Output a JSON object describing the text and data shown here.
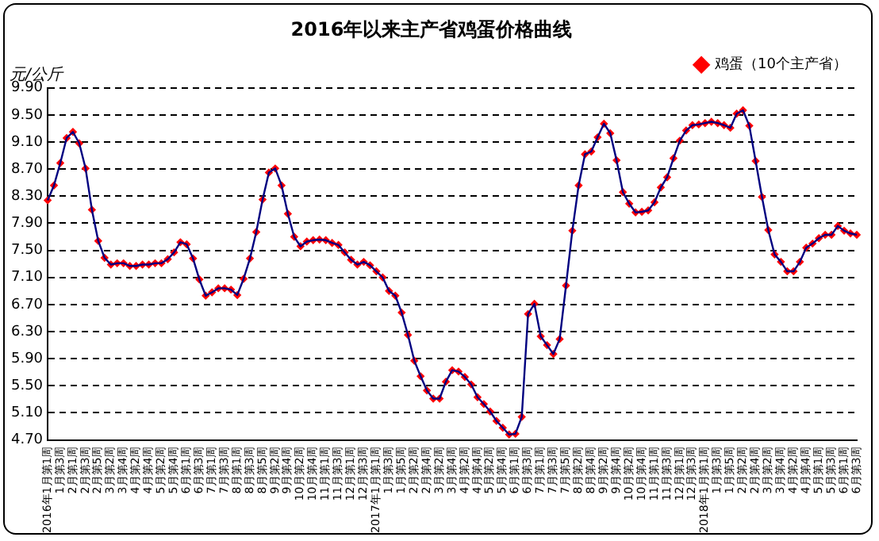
{
  "chart_data": {
    "type": "line",
    "title": "2016年以来主产省鸡蛋价格曲线",
    "ylabel": "元/公斤",
    "categories": [
      "2016年1月第1周",
      null,
      "1月第3周",
      null,
      "2月第1周",
      null,
      "2月第3周",
      null,
      "2月第5周",
      null,
      "3月第2周",
      null,
      "3月第4周",
      null,
      "4月第2周",
      null,
      "4月第4周",
      null,
      "5月第2周",
      null,
      "5月第4周",
      null,
      "6月第1周",
      null,
      "6月第3周",
      null,
      "7月第1周",
      null,
      "7月第3周",
      null,
      "8月第1周",
      null,
      "8月第3周",
      null,
      "8月第5周",
      null,
      "9月第2周",
      null,
      "9月第4周",
      null,
      "10月第2周",
      null,
      "10月第4周",
      null,
      "11月第1周",
      null,
      "11月第3周",
      null,
      "12月第1周",
      null,
      "12月第3周",
      null,
      "2017年1月第1周",
      null,
      "1月第3周",
      null,
      "1月第5周",
      null,
      "2月第2周",
      null,
      "2月第4周",
      null,
      "3月第2周",
      null,
      "3月第4周",
      null,
      "4月第2周",
      null,
      "4月第4周",
      null,
      "5月第2周",
      null,
      "5月第4周",
      null,
      "6月第1周",
      null,
      "6月第3周",
      null,
      "7月第1周",
      null,
      "7月第3周",
      null,
      "7月第5周",
      null,
      "8月第2周",
      null,
      "8月第4周",
      null,
      "9月第2周",
      null,
      "9月第4周",
      null,
      "10月第2周",
      null,
      "10月第4周",
      null,
      "11月第1周",
      null,
      "11月第3周",
      null,
      "12月第1周",
      null,
      "12月第3周",
      null,
      "2018年1月第1周",
      null,
      "1月第3周",
      null,
      "1月第5周",
      null,
      "2月第2周",
      null,
      "2月第4周",
      null,
      "3月第2周",
      null,
      "3月第4周",
      null,
      "4月第2周",
      null,
      "4月第4周",
      null,
      "5月第1周",
      null,
      "5月第3周",
      null,
      "6月第1周",
      null,
      "6月第3周"
    ],
    "series": [
      {
        "name": "鸡蛋（10个主产省）",
        "color": "#ff0000",
        "values": [
          8.24,
          8.46,
          8.79,
          9.16,
          9.25,
          9.08,
          8.71,
          8.1,
          7.64,
          7.39,
          7.29,
          7.31,
          7.31,
          7.27,
          7.27,
          7.29,
          7.29,
          7.31,
          7.31,
          7.37,
          7.47,
          7.62,
          7.59,
          7.38,
          7.07,
          6.83,
          6.88,
          6.94,
          6.94,
          6.92,
          6.84,
          7.08,
          7.38,
          7.77,
          8.25,
          8.65,
          8.71,
          8.46,
          8.04,
          7.7,
          7.56,
          7.63,
          7.65,
          7.66,
          7.65,
          7.61,
          7.58,
          7.47,
          7.36,
          7.29,
          7.33,
          7.28,
          7.19,
          7.1,
          6.9,
          6.83,
          6.58,
          6.25,
          5.87,
          5.64,
          5.43,
          5.31,
          5.31,
          5.56,
          5.73,
          5.71,
          5.63,
          5.52,
          5.33,
          5.23,
          5.12,
          4.98,
          4.88,
          4.78,
          4.79,
          5.04,
          6.56,
          6.71,
          6.23,
          6.1,
          5.97,
          6.19,
          6.98,
          7.79,
          8.46,
          8.92,
          8.96,
          9.17,
          9.37,
          9.23,
          8.83,
          8.36,
          8.19,
          8.06,
          8.07,
          8.09,
          8.21,
          8.43,
          8.58,
          8.86,
          9.12,
          9.27,
          9.35,
          9.36,
          9.38,
          9.4,
          9.38,
          9.35,
          9.31,
          9.52,
          9.57,
          9.34,
          8.82,
          8.29,
          7.8,
          7.44,
          7.33,
          7.19,
          7.19,
          7.33,
          7.54,
          7.6,
          7.68,
          7.73,
          7.73,
          7.86,
          7.79,
          7.75,
          7.73
        ]
      }
    ],
    "ylim": [
      4.7,
      9.9
    ],
    "yticks": [
      {
        "value": 4.7,
        "label": "4.70"
      },
      {
        "value": 5.1,
        "label": "5.10"
      },
      {
        "value": 5.5,
        "label": "5.50"
      },
      {
        "value": 5.9,
        "label": "5.90"
      },
      {
        "value": 6.3,
        "label": "6.30"
      },
      {
        "value": 6.7,
        "label": "6.70"
      },
      {
        "value": 7.1,
        "label": "7.10"
      },
      {
        "value": 7.5,
        "label": "7.50"
      },
      {
        "value": 7.9,
        "label": "7.90"
      },
      {
        "value": 8.3,
        "label": "8.30"
      },
      {
        "value": 8.7,
        "label": "8.70"
      },
      {
        "value": 9.1,
        "label": "9.10"
      },
      {
        "value": 9.5,
        "label": "9.50"
      },
      {
        "value": 9.9,
        "label": "9.90"
      }
    ],
    "grid": "y",
    "legend": "top right",
    "marker": "diamond",
    "line_style": "solid"
  }
}
